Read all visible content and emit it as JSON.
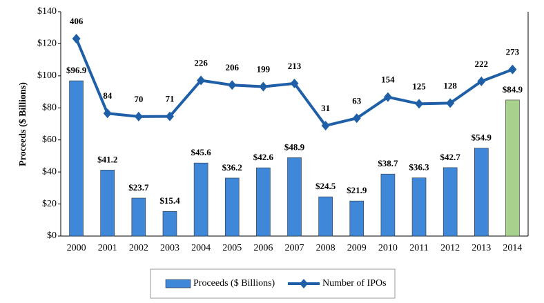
{
  "chart_data": {
    "type": "bar_line",
    "y_axis_label": "Proceeds ($ Billions)",
    "categories": [
      "2000",
      "2001",
      "2002",
      "2003",
      "2004",
      "2005",
      "2006",
      "2007",
      "2008",
      "2009",
      "2010",
      "2011",
      "2012",
      "2013",
      "2014"
    ],
    "series": [
      {
        "name": "Proceeds ($ Billions)",
        "type": "bar",
        "color": "#3f87d9",
        "colors": [
          "#3f87d9",
          "#3f87d9",
          "#3f87d9",
          "#3f87d9",
          "#3f87d9",
          "#3f87d9",
          "#3f87d9",
          "#3f87d9",
          "#3f87d9",
          "#3f87d9",
          "#3f87d9",
          "#3f87d9",
          "#3f87d9",
          "#3f87d9",
          "#a9d18e"
        ],
        "values": [
          96.9,
          41.2,
          23.7,
          15.4,
          45.6,
          36.2,
          42.6,
          48.9,
          24.5,
          21.9,
          38.7,
          36.3,
          42.7,
          54.9,
          84.9
        ],
        "value_labels": [
          "$96.9",
          "$41.2",
          "$23.7",
          "$15.4",
          "$45.6",
          "$36.2",
          "$42.6",
          "$48.9",
          "$24.5",
          "$21.9",
          "$38.7",
          "$36.3",
          "$42.7",
          "$54.9",
          "$84.9"
        ]
      },
      {
        "name": "Number of IPOs",
        "type": "line",
        "axis": "y2",
        "color": "#1f5fa8",
        "values": [
          406,
          84,
          70,
          71,
          226,
          206,
          199,
          213,
          31,
          63,
          154,
          125,
          128,
          222,
          273
        ]
      }
    ],
    "ylim": [
      0,
      140
    ],
    "yticks": [
      {
        "value": 0,
        "label": "$0"
      },
      {
        "value": 20,
        "label": "$20"
      },
      {
        "value": 40,
        "label": "$40"
      },
      {
        "value": 60,
        "label": "$60"
      },
      {
        "value": 80,
        "label": "$80"
      },
      {
        "value": 100,
        "label": "$100"
      },
      {
        "value": 120,
        "label": "$120"
      },
      {
        "value": 140,
        "label": "$140"
      }
    ],
    "y2lim": [
      -445,
      522
    ],
    "legend": "bottom"
  }
}
